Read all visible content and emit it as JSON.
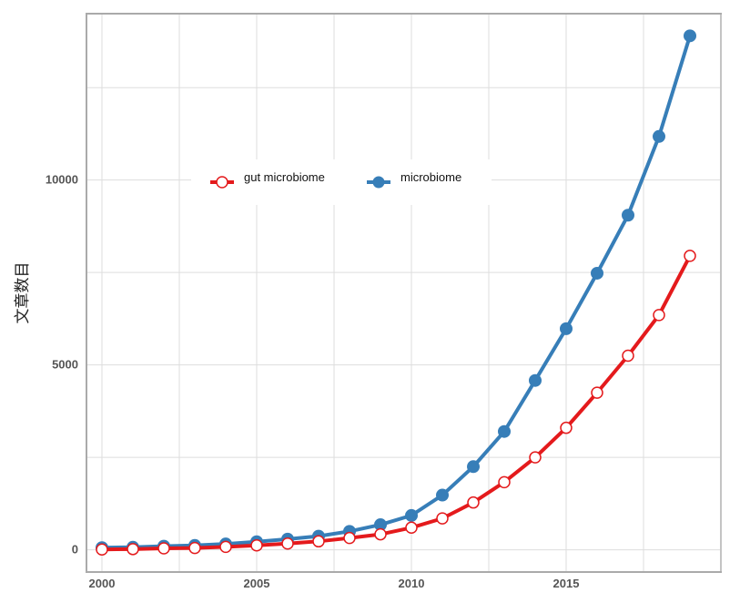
{
  "chart_data": {
    "type": "line",
    "title": "",
    "xlabel": "",
    "ylabel": "文章数目",
    "x": [
      2000,
      2001,
      2002,
      2003,
      2004,
      2005,
      2006,
      2007,
      2008,
      2009,
      2010,
      2011,
      2012,
      2013,
      2014,
      2015,
      2016,
      2017,
      2018,
      2019
    ],
    "xlim": [
      1999.5,
      2020
    ],
    "ylim": [
      -600,
      14500
    ],
    "xticks": [
      2000,
      2005,
      2010,
      2015
    ],
    "xtick_labels": [
      "2000",
      "2005",
      "2010",
      "2015"
    ],
    "yticks": [
      0,
      5000,
      10000
    ],
    "ytick_labels": [
      "0",
      "5000",
      "10000"
    ],
    "grid": true,
    "legend_position": "upper-left-inside",
    "series": [
      {
        "name": "gut microbiome",
        "color": "#e41a1c",
        "marker": "hollow-circle",
        "values": [
          10,
          20,
          40,
          50,
          80,
          120,
          170,
          230,
          320,
          420,
          600,
          850,
          1280,
          1830,
          2500,
          3300,
          4250,
          5250,
          6350,
          7950
        ]
      },
      {
        "name": "microbiome",
        "color": "#377eb8",
        "marker": "filled-circle",
        "values": [
          60,
          70,
          100,
          120,
          160,
          220,
          290,
          370,
          500,
          680,
          930,
          1480,
          2250,
          3200,
          4580,
          5980,
          7480,
          9050,
          11180,
          13900
        ]
      }
    ]
  }
}
